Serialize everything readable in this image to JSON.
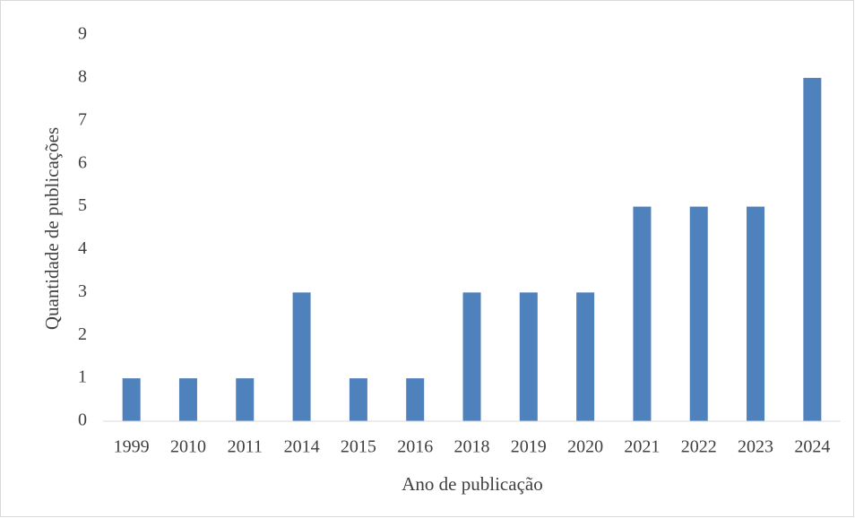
{
  "chart_data": {
    "type": "bar",
    "categories": [
      "1999",
      "2010",
      "2011",
      "2014",
      "2015",
      "2016",
      "2018",
      "2019",
      "2020",
      "2021",
      "2022",
      "2023",
      "2024"
    ],
    "values": [
      1,
      1,
      1,
      3,
      1,
      1,
      3,
      3,
      3,
      5,
      5,
      5,
      8
    ],
    "color": "#4f81bd",
    "x_label": "Ano de publicação",
    "y_label": "Quantidade de publicações",
    "ylim": [
      0,
      9
    ],
    "yticks": [
      0,
      1,
      2,
      3,
      4,
      5,
      6,
      7,
      8,
      9
    ],
    "grid": false
  }
}
